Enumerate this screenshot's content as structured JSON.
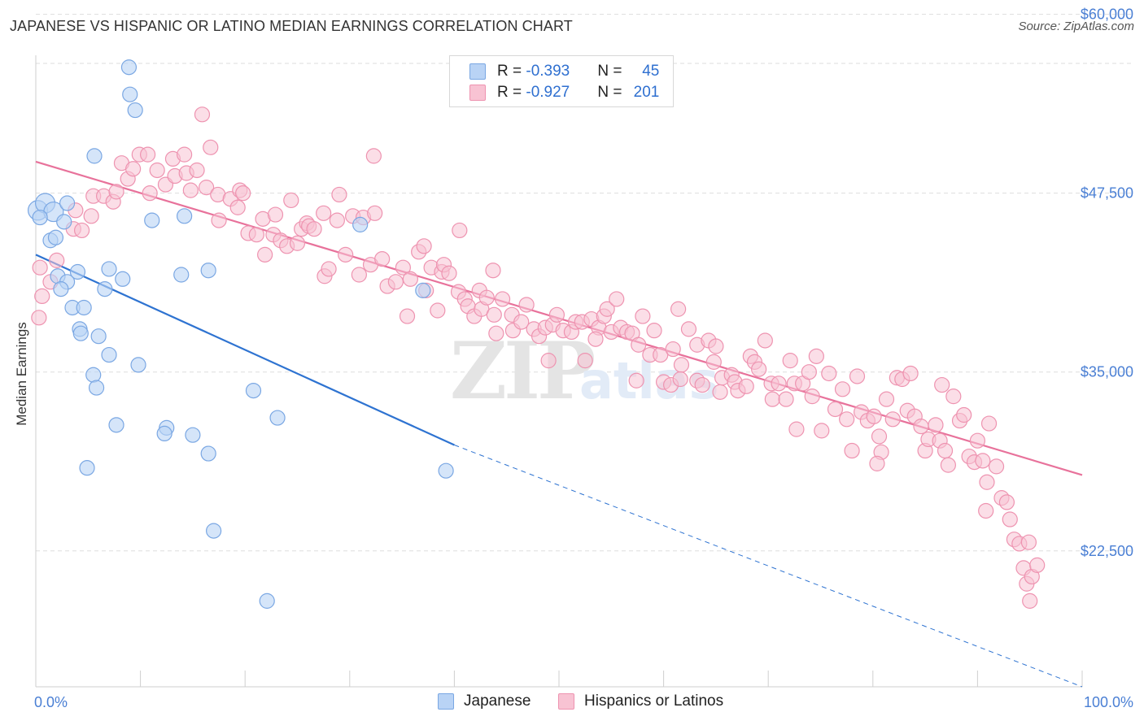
{
  "title": "JAPANESE VS HISPANIC OR LATINO MEDIAN EARNINGS CORRELATION CHART",
  "source": "Source: ZipAtlas.com",
  "legend": {
    "japanese": {
      "r_label": "R = ",
      "r_value": "-0.393",
      "n_label": "N = ",
      "n_value": "45"
    },
    "hispanic": {
      "r_label": "R = ",
      "r_value": "-0.927",
      "n_label": "N = ",
      "n_value": "201"
    }
  },
  "colors": {
    "japanese_fill": "#b9d3f5",
    "japanese_stroke": "#7aa7e3",
    "japanese_line": "#2e73d1",
    "hispanic_fill": "#f8c3d3",
    "hispanic_stroke": "#ee93b0",
    "hispanic_line": "#e8729b",
    "tick": "#4a7fd4",
    "grid": "#dddddd"
  },
  "chart_data": {
    "type": "scatter",
    "title": "JAPANESE VS HISPANIC OR LATINO MEDIAN EARNINGS CORRELATION CHART",
    "xlabel": "",
    "ylabel": "Median Earnings",
    "xlim": [
      0,
      100
    ],
    "ylim": [
      13000,
      61000
    ],
    "x_tick_labels": [
      "0.0%",
      "100.0%"
    ],
    "y_ticks": [
      22500,
      35000,
      47500,
      60000
    ],
    "y_tick_labels": [
      "$22,500",
      "$35,000",
      "$47,500",
      "$60,000"
    ],
    "grid": true,
    "legend_position": "top-center",
    "series": [
      {
        "name": "Japanese",
        "points": [
          [
            0.2,
            46300
          ],
          [
            0.9,
            46800
          ],
          [
            1.7,
            46200
          ],
          [
            0.4,
            45800
          ],
          [
            3.0,
            46800
          ],
          [
            2.7,
            45500
          ],
          [
            1.4,
            44200
          ],
          [
            1.9,
            44400
          ],
          [
            2.1,
            41700
          ],
          [
            3.0,
            41300
          ],
          [
            4.0,
            42000
          ],
          [
            2.4,
            40800
          ],
          [
            3.5,
            39500
          ],
          [
            4.6,
            39500
          ],
          [
            4.2,
            38000
          ],
          [
            4.3,
            37700
          ],
          [
            6.0,
            37500
          ],
          [
            5.6,
            50100
          ],
          [
            7.0,
            42200
          ],
          [
            8.3,
            41500
          ],
          [
            6.6,
            40800
          ],
          [
            7.0,
            36200
          ],
          [
            5.5,
            34800
          ],
          [
            5.8,
            33900
          ],
          [
            9.8,
            35500
          ],
          [
            7.7,
            31300
          ],
          [
            12.5,
            31100
          ],
          [
            15.0,
            30600
          ],
          [
            11.1,
            45600
          ],
          [
            14.2,
            45900
          ],
          [
            13.9,
            41800
          ],
          [
            16.5,
            42100
          ],
          [
            8.9,
            56300
          ],
          [
            9.0,
            54400
          ],
          [
            9.5,
            53300
          ],
          [
            20.8,
            33700
          ],
          [
            23.1,
            31800
          ],
          [
            16.5,
            29300
          ],
          [
            12.3,
            30700
          ],
          [
            4.9,
            28300
          ],
          [
            17.0,
            23900
          ],
          [
            22.1,
            19000
          ],
          [
            31.0,
            45300
          ],
          [
            37.0,
            40700
          ],
          [
            39.2,
            28100
          ]
        ]
      },
      {
        "name": "Hispanics or Latinos",
        "points": [
          [
            0.3,
            38800
          ],
          [
            0.4,
            42300
          ],
          [
            0.6,
            40300
          ],
          [
            1.4,
            41300
          ],
          [
            2.0,
            42800
          ],
          [
            3.6,
            45000
          ],
          [
            3.8,
            46300
          ],
          [
            4.4,
            44900
          ],
          [
            5.3,
            45900
          ],
          [
            5.5,
            47300
          ],
          [
            6.5,
            47300
          ],
          [
            7.4,
            46900
          ],
          [
            7.7,
            47600
          ],
          [
            8.2,
            49600
          ],
          [
            8.8,
            48500
          ],
          [
            9.3,
            49200
          ],
          [
            9.9,
            50200
          ],
          [
            10.7,
            50200
          ],
          [
            10.9,
            47500
          ],
          [
            11.6,
            49100
          ],
          [
            12.4,
            48100
          ],
          [
            13.1,
            49900
          ],
          [
            13.3,
            48700
          ],
          [
            14.2,
            50200
          ],
          [
            14.4,
            48900
          ],
          [
            14.8,
            47700
          ],
          [
            15.4,
            49100
          ],
          [
            15.9,
            53000
          ],
          [
            16.3,
            47900
          ],
          [
            16.7,
            50700
          ],
          [
            17.4,
            47400
          ],
          [
            17.5,
            45600
          ],
          [
            18.6,
            47100
          ],
          [
            19.3,
            46500
          ],
          [
            19.5,
            47700
          ],
          [
            19.8,
            47500
          ],
          [
            20.3,
            44700
          ],
          [
            21.1,
            44600
          ],
          [
            21.7,
            45700
          ],
          [
            21.9,
            43200
          ],
          [
            22.7,
            44600
          ],
          [
            22.9,
            46000
          ],
          [
            23.4,
            44200
          ],
          [
            24.0,
            43800
          ],
          [
            24.4,
            47000
          ],
          [
            25.0,
            44000
          ],
          [
            25.4,
            45000
          ],
          [
            25.9,
            45400
          ],
          [
            26.1,
            45200
          ],
          [
            26.6,
            45000
          ],
          [
            27.5,
            46100
          ],
          [
            27.6,
            41700
          ],
          [
            28.0,
            42200
          ],
          [
            28.8,
            45600
          ],
          [
            29.0,
            47400
          ],
          [
            29.6,
            43200
          ],
          [
            30.3,
            45900
          ],
          [
            30.9,
            41800
          ],
          [
            31.3,
            45800
          ],
          [
            32.0,
            42500
          ],
          [
            32.3,
            50100
          ],
          [
            32.4,
            46100
          ],
          [
            33.1,
            42900
          ],
          [
            33.6,
            41000
          ],
          [
            34.4,
            41300
          ],
          [
            35.1,
            42300
          ],
          [
            35.8,
            41500
          ],
          [
            36.6,
            43400
          ],
          [
            37.1,
            43800
          ],
          [
            37.3,
            40700
          ],
          [
            37.8,
            42300
          ],
          [
            38.4,
            39300
          ],
          [
            38.8,
            42000
          ],
          [
            39.0,
            42500
          ],
          [
            39.5,
            41900
          ],
          [
            40.4,
            40600
          ],
          [
            40.5,
            44900
          ],
          [
            41.0,
            40100
          ],
          [
            41.3,
            39600
          ],
          [
            41.9,
            38900
          ],
          [
            42.4,
            40700
          ],
          [
            42.6,
            39400
          ],
          [
            43.1,
            40200
          ],
          [
            43.8,
            39000
          ],
          [
            44.0,
            37700
          ],
          [
            43.7,
            42100
          ],
          [
            44.6,
            40100
          ],
          [
            45.5,
            39000
          ],
          [
            45.6,
            37900
          ],
          [
            46.4,
            38500
          ],
          [
            46.9,
            39700
          ],
          [
            47.6,
            38000
          ],
          [
            48.1,
            37500
          ],
          [
            48.7,
            38100
          ],
          [
            49.4,
            38300
          ],
          [
            49.8,
            39000
          ],
          [
            50.4,
            37900
          ],
          [
            51.2,
            37800
          ],
          [
            51.6,
            38500
          ],
          [
            52.2,
            38500
          ],
          [
            52.5,
            35800
          ],
          [
            53.1,
            38700
          ],
          [
            53.8,
            38100
          ],
          [
            54.3,
            38900
          ],
          [
            54.6,
            39400
          ],
          [
            55.0,
            37800
          ],
          [
            55.5,
            40100
          ],
          [
            55.9,
            38100
          ],
          [
            56.5,
            37800
          ],
          [
            57.0,
            37700
          ],
          [
            57.6,
            36900
          ],
          [
            58.0,
            38900
          ],
          [
            58.7,
            36200
          ],
          [
            59.1,
            37900
          ],
          [
            59.7,
            36200
          ],
          [
            60.0,
            34300
          ],
          [
            60.7,
            34100
          ],
          [
            61.4,
            39400
          ],
          [
            61.7,
            35500
          ],
          [
            61.6,
            34500
          ],
          [
            62.4,
            38000
          ],
          [
            63.2,
            36900
          ],
          [
            63.2,
            34400
          ],
          [
            63.7,
            34100
          ],
          [
            64.3,
            37200
          ],
          [
            64.8,
            35700
          ],
          [
            65.4,
            33600
          ],
          [
            65.6,
            34600
          ],
          [
            66.5,
            34800
          ],
          [
            66.8,
            34300
          ],
          [
            67.1,
            33700
          ],
          [
            67.9,
            34000
          ],
          [
            68.3,
            36100
          ],
          [
            68.7,
            35700
          ],
          [
            69.1,
            35200
          ],
          [
            69.7,
            37200
          ],
          [
            70.3,
            34200
          ],
          [
            70.4,
            33100
          ],
          [
            71.0,
            34200
          ],
          [
            71.7,
            33100
          ],
          [
            72.1,
            35800
          ],
          [
            72.5,
            34200
          ],
          [
            73.3,
            34200
          ],
          [
            73.9,
            35000
          ],
          [
            74.2,
            33300
          ],
          [
            74.6,
            36100
          ],
          [
            75.1,
            30900
          ],
          [
            75.8,
            34900
          ],
          [
            76.4,
            32400
          ],
          [
            77.1,
            33800
          ],
          [
            77.5,
            31700
          ],
          [
            78.0,
            29500
          ],
          [
            78.5,
            34700
          ],
          [
            78.9,
            32200
          ],
          [
            79.5,
            31600
          ],
          [
            80.1,
            31900
          ],
          [
            80.6,
            30500
          ],
          [
            80.8,
            29400
          ],
          [
            81.3,
            33100
          ],
          [
            81.9,
            31700
          ],
          [
            82.3,
            34600
          ],
          [
            82.8,
            34500
          ],
          [
            83.3,
            32300
          ],
          [
            83.6,
            34900
          ],
          [
            84.0,
            31900
          ],
          [
            84.6,
            31200
          ],
          [
            85.0,
            29500
          ],
          [
            85.3,
            30300
          ],
          [
            86.0,
            31300
          ],
          [
            86.4,
            30200
          ],
          [
            86.9,
            29500
          ],
          [
            87.2,
            28500
          ],
          [
            87.7,
            33300
          ],
          [
            88.3,
            31600
          ],
          [
            88.7,
            32000
          ],
          [
            89.2,
            29100
          ],
          [
            89.7,
            28700
          ],
          [
            90.0,
            30200
          ],
          [
            90.5,
            28800
          ],
          [
            90.9,
            27300
          ],
          [
            91.1,
            31400
          ],
          [
            91.8,
            28400
          ],
          [
            92.3,
            26200
          ],
          [
            92.8,
            25900
          ],
          [
            93.1,
            24700
          ],
          [
            93.5,
            23300
          ],
          [
            94.0,
            23000
          ],
          [
            94.4,
            21300
          ],
          [
            94.7,
            20200
          ],
          [
            95.0,
            19000
          ],
          [
            95.2,
            20700
          ],
          [
            95.7,
            21500
          ],
          [
            53.5,
            37300
          ],
          [
            57.4,
            34400
          ],
          [
            65.0,
            36800
          ],
          [
            72.7,
            31000
          ],
          [
            80.4,
            28600
          ],
          [
            86.6,
            34100
          ],
          [
            90.8,
            25300
          ],
          [
            94.9,
            23100
          ],
          [
            35.5,
            38900
          ],
          [
            49.0,
            35800
          ],
          [
            60.9,
            36600
          ]
        ]
      }
    ],
    "trend_lines": [
      {
        "series": "Japanese",
        "from": [
          0,
          43200
        ],
        "to": [
          40,
          29900
        ],
        "dashed_to": [
          100,
          13000
        ]
      },
      {
        "series": "Hispanics or Latinos",
        "from": [
          0,
          49700
        ],
        "to": [
          100,
          27800
        ]
      }
    ]
  },
  "bottom_legend": [
    "Japanese",
    "Hispanics or Latinos"
  ],
  "watermark": "ZIPatlas"
}
